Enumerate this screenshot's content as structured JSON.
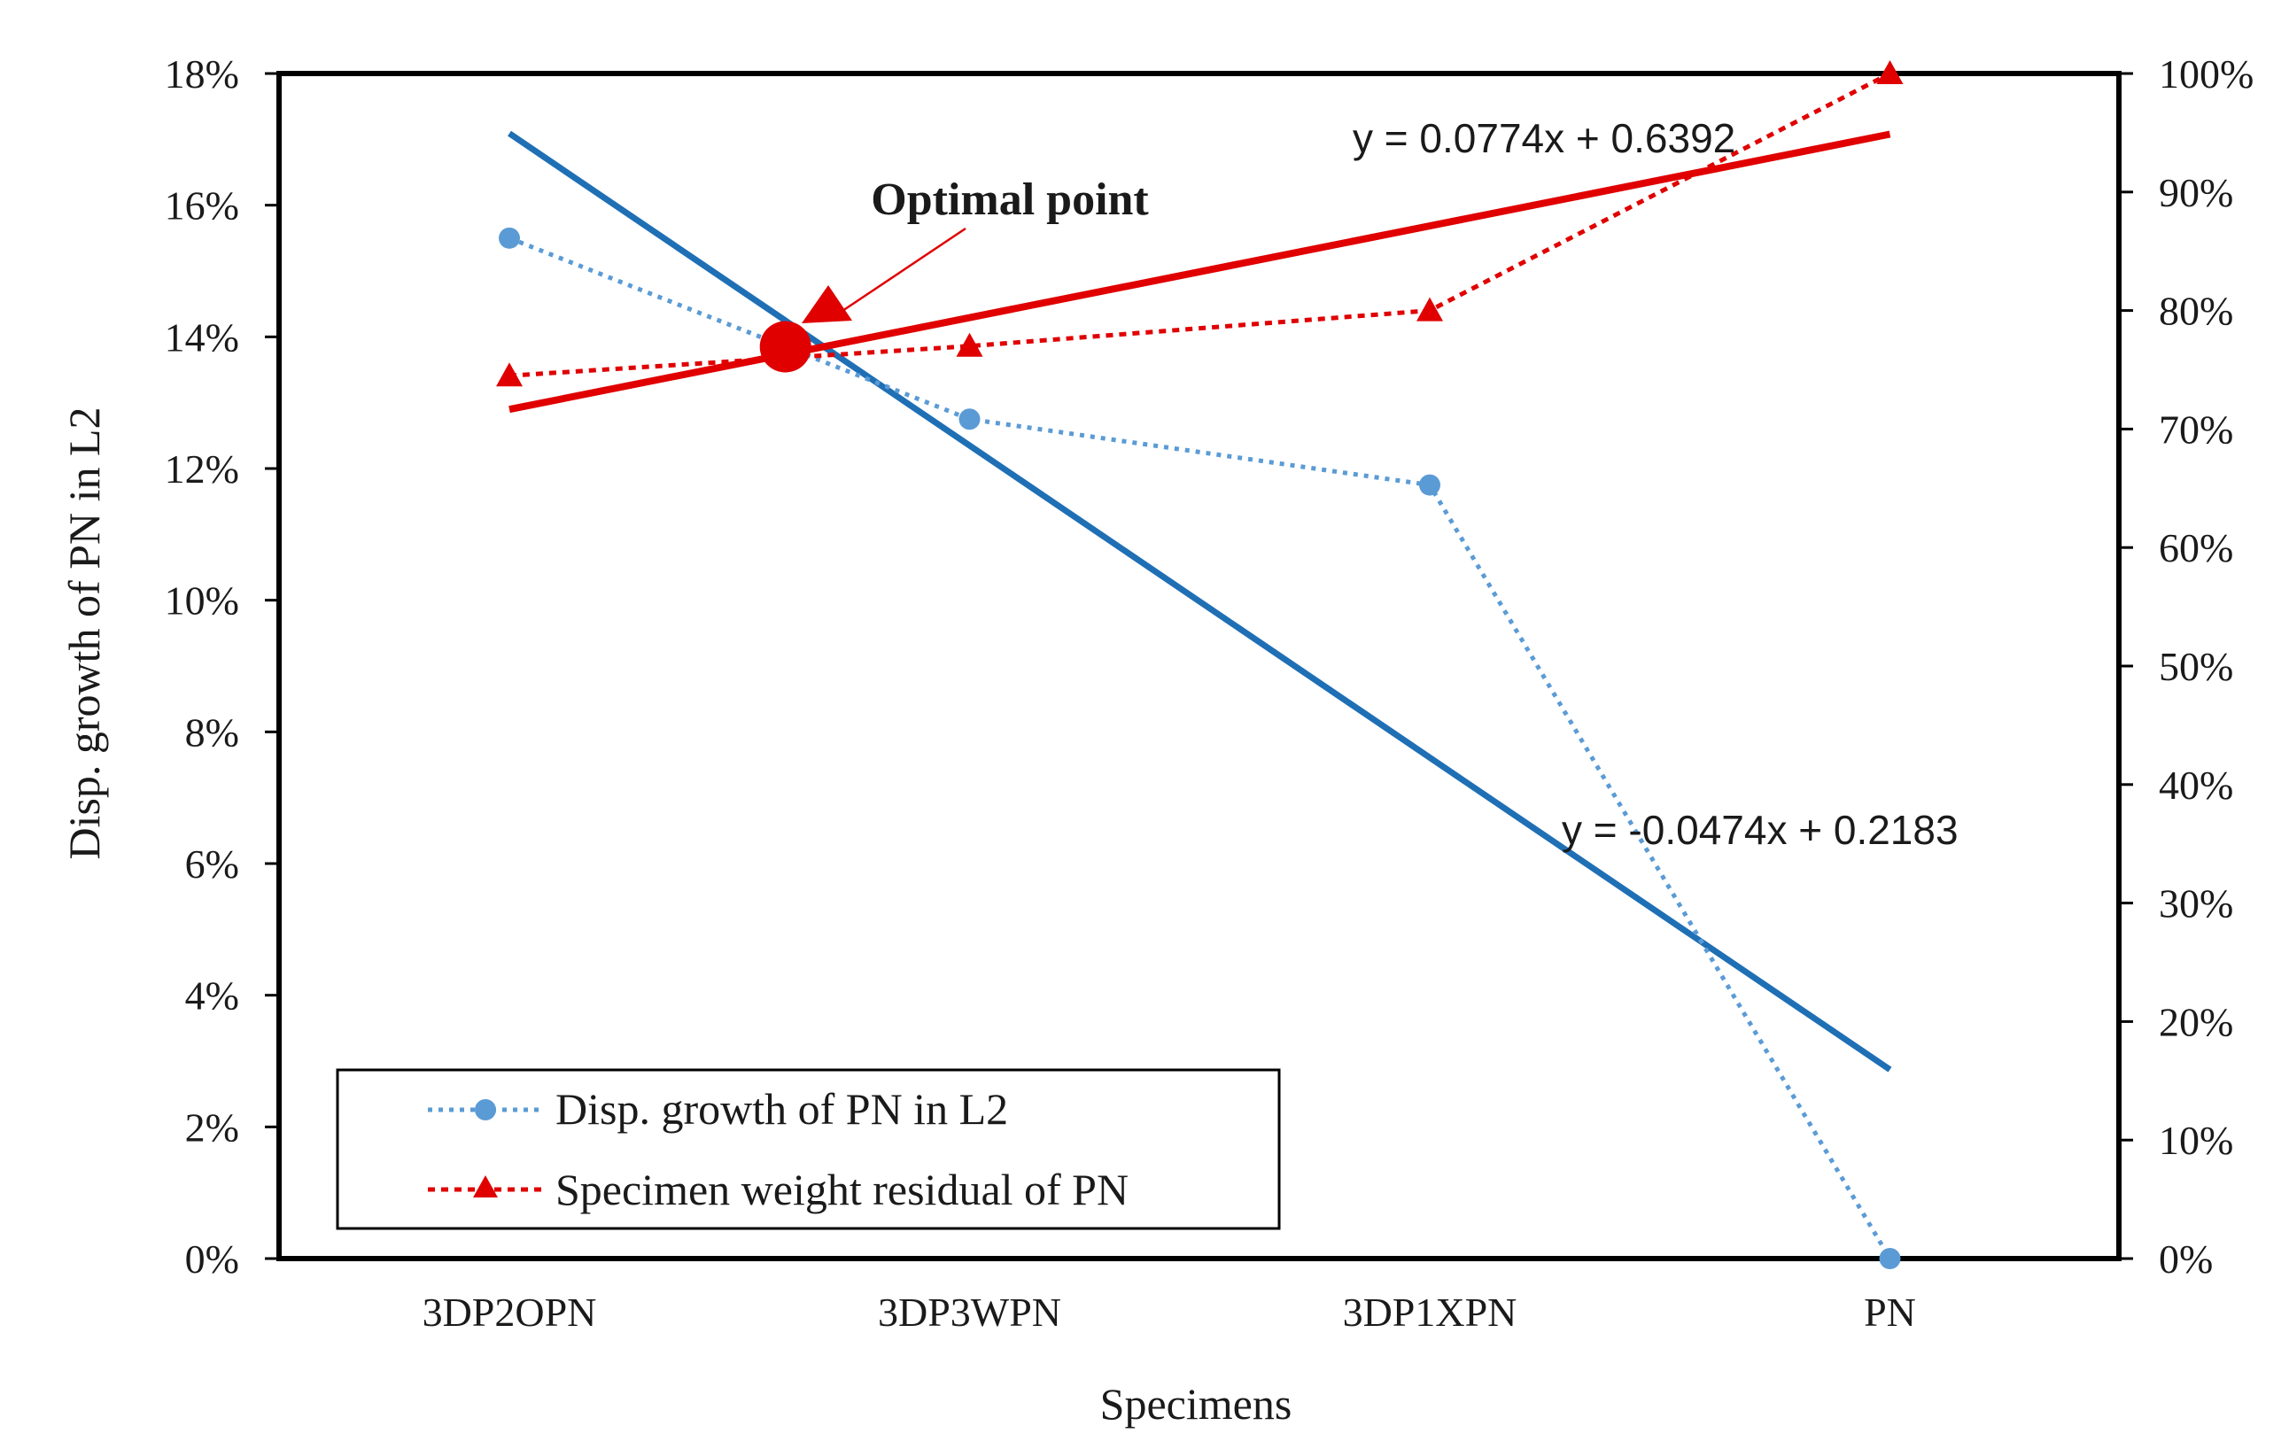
{
  "chart_data": {
    "type": "line",
    "categories": [
      "3DP2OPN",
      "3DP3WPN",
      "3DP1XPN",
      "PN"
    ],
    "xlabel": "Specimens",
    "ylabel": "Disp. growth of PN in L2",
    "y_left": {
      "range": [
        0,
        0.18
      ],
      "ticks": [
        0,
        0.02,
        0.04,
        0.06,
        0.08,
        0.1,
        0.12,
        0.14,
        0.16,
        0.18
      ],
      "tick_labels": [
        "0%",
        "2%",
        "4%",
        "6%",
        "8%",
        "10%",
        "12%",
        "14%",
        "16%",
        "18%"
      ]
    },
    "y_right": {
      "range": [
        0,
        1.0
      ],
      "ticks": [
        0,
        0.1,
        0.2,
        0.3,
        0.4,
        0.5,
        0.6,
        0.7,
        0.8,
        0.9,
        1.0
      ],
      "tick_labels": [
        "0%",
        "10%",
        "20%",
        "30%",
        "40%",
        "50%",
        "60%",
        "70%",
        "80%",
        "90%",
        "100%"
      ]
    },
    "series": [
      {
        "name": "Disp. growth of PN in L2",
        "axis": "left",
        "color": "#5b9bd5",
        "marker": "circle",
        "values": [
          0.155,
          0.1275,
          0.1175,
          0.0
        ]
      },
      {
        "name": "Specimen weight residual of PN",
        "axis": "right",
        "color": "#e00000",
        "marker": "triangle",
        "values": [
          0.745,
          0.77,
          0.8,
          1.0
        ]
      }
    ],
    "trendlines": [
      {
        "series": "Disp. growth of PN in L2",
        "axis": "left",
        "color": "#1f6fb5",
        "slope": -0.0474,
        "intercept": 0.2183,
        "equation": "y = -0.0474x + 0.2183"
      },
      {
        "series": "Specimen weight residual of PN",
        "axis": "right",
        "color": "#e00000",
        "slope": 0.0774,
        "intercept": 0.6392,
        "equation": "y = 0.0774x + 0.6392"
      }
    ],
    "annotation": {
      "text": "Optimal point",
      "x": 1.6,
      "y_left": 0.1385,
      "color": "#e00000"
    },
    "legend": {
      "position": "bottom-left",
      "entries": [
        "Disp. growth of PN in L2",
        "Specimen weight residual of PN"
      ]
    }
  }
}
